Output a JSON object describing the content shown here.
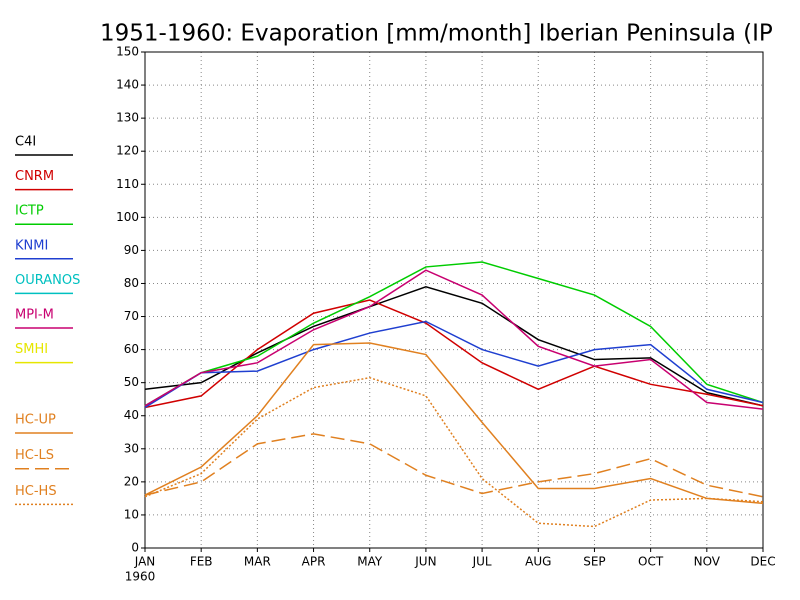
{
  "chart_data": {
    "type": "line",
    "title": "1951-1960: Evaporation [mm/month] Iberian Peninsula (IP",
    "categories": [
      "JAN",
      "FEB",
      "MAR",
      "APR",
      "MAY",
      "JUN",
      "JUL",
      "AUG",
      "SEP",
      "OCT",
      "NOV",
      "DEC"
    ],
    "year_label": "1960",
    "ylim": [
      0,
      150
    ],
    "yticks": [
      0,
      10,
      20,
      30,
      40,
      50,
      60,
      70,
      80,
      90,
      100,
      110,
      120,
      130,
      140,
      150
    ],
    "grid": true,
    "legend": "left",
    "series": [
      {
        "name": "C4I",
        "color": "#000000",
        "dash": "solid",
        "values": [
          48,
          50,
          59,
          67,
          73,
          79,
          74,
          63,
          57,
          57.5,
          47,
          43
        ]
      },
      {
        "name": "CNRM",
        "color": "#d00000",
        "dash": "solid",
        "values": [
          42.5,
          46,
          60,
          71,
          75,
          68,
          56,
          48,
          55,
          49.5,
          46.5,
          43
        ]
      },
      {
        "name": "ICTP",
        "color": "#00cc00",
        "dash": "solid",
        "values": [
          43,
          53,
          58,
          68,
          76,
          85,
          86.5,
          81.5,
          76.5,
          67,
          49.5,
          44
        ]
      },
      {
        "name": "KNMI",
        "color": "#1f3fd0",
        "dash": "solid",
        "values": [
          42.5,
          53,
          53.5,
          60,
          65,
          68.5,
          60,
          55,
          60,
          61.5,
          48,
          44
        ]
      },
      {
        "name": "OURANOS",
        "color": "#00c0c0",
        "dash": "solid",
        "values": [
          null,
          null,
          null,
          null,
          null,
          null,
          null,
          null,
          null,
          null,
          null,
          null
        ]
      },
      {
        "name": "MPI-M",
        "color": "#c80070",
        "dash": "solid",
        "values": [
          43,
          53,
          56,
          66,
          73,
          84,
          76.5,
          61,
          55,
          57,
          44,
          42
        ]
      },
      {
        "name": "SMHI",
        "color": "#e6e600",
        "dash": "solid",
        "values": [
          null,
          null,
          null,
          null,
          null,
          null,
          null,
          null,
          null,
          null,
          null,
          null
        ]
      },
      {
        "name": "HC-UP",
        "color": "#e08020",
        "dash": "solid",
        "values": [
          16,
          24.5,
          40,
          61.5,
          62,
          58.5,
          38,
          18,
          18,
          21,
          15,
          13.5
        ]
      },
      {
        "name": "HC-LS",
        "color": "#e08020",
        "dash": "dashed",
        "values": [
          16,
          20,
          31.5,
          34.5,
          31.5,
          22,
          16.5,
          20,
          22.5,
          27,
          19,
          15.5
        ]
      },
      {
        "name": "HC-HS",
        "color": "#e08020",
        "dash": "dotted",
        "values": [
          15.5,
          22.5,
          39,
          48.5,
          51.5,
          46,
          21,
          7.5,
          6.5,
          14.5,
          15,
          14
        ]
      }
    ]
  }
}
